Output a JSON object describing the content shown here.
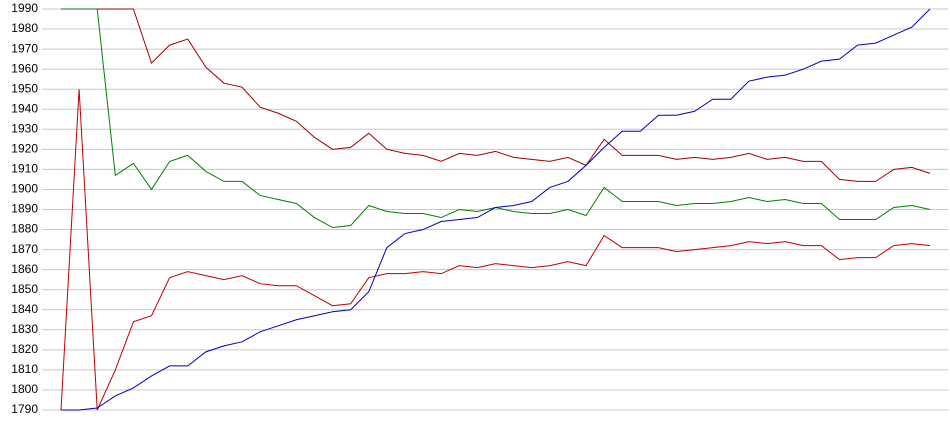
{
  "chart_data": {
    "type": "line",
    "ylim": [
      1790,
      1990
    ],
    "yticks": [
      1790,
      1800,
      1810,
      1820,
      1830,
      1840,
      1850,
      1860,
      1870,
      1880,
      1890,
      1900,
      1910,
      1920,
      1930,
      1940,
      1950,
      1960,
      1970,
      1980,
      1990
    ],
    "grid": true,
    "series": [
      {
        "color": "#a00000",
        "values": [
          1990,
          1990,
          1990,
          1990,
          1990,
          1963,
          1972,
          1975,
          1961,
          1953,
          1951,
          1941,
          1938,
          1934,
          1926,
          1920,
          1921,
          1928,
          1920,
          1918,
          1917,
          1914,
          1918,
          1917,
          1919,
          1916,
          1915,
          1914,
          1916,
          1912,
          1925,
          1917,
          1917,
          1917,
          1915,
          1916,
          1915,
          1916,
          1918,
          1915,
          1916,
          1914,
          1914,
          1905,
          1904,
          1904,
          1910,
          1911,
          1908
        ]
      },
      {
        "color": "#008000",
        "values": [
          1990,
          1990,
          1990,
          1907,
          1913,
          1900,
          1914,
          1917,
          1909,
          1904,
          1904,
          1897,
          1895,
          1893,
          1886,
          1881,
          1882,
          1892,
          1889,
          1888,
          1888,
          1886,
          1890,
          1889,
          1891,
          1889,
          1888,
          1888,
          1890,
          1887,
          1901,
          1894,
          1894,
          1894,
          1892,
          1893,
          1893,
          1894,
          1896,
          1894,
          1895,
          1893,
          1893,
          1885,
          1885,
          1885,
          1891,
          1892,
          1890
        ]
      },
      {
        "color": "#c00000",
        "values": [
          1790,
          1950,
          1790,
          1810,
          1834,
          1837,
          1856,
          1859,
          1857,
          1855,
          1857,
          1853,
          1852,
          1852,
          1847,
          1842,
          1843,
          1856,
          1858,
          1858,
          1859,
          1858,
          1862,
          1861,
          1863,
          1862,
          1861,
          1862,
          1864,
          1862,
          1877,
          1871,
          1871,
          1871,
          1869,
          1870,
          1871,
          1872,
          1874,
          1873,
          1874,
          1872,
          1872,
          1865,
          1866,
          1866,
          1872,
          1873,
          1872
        ]
      },
      {
        "color": "#0000c0",
        "values": [
          1790,
          1790,
          1791,
          1797,
          1801,
          1807,
          1812,
          1812,
          1819,
          1822,
          1824,
          1829,
          1832,
          1835,
          1837,
          1839,
          1840,
          1849,
          1871,
          1878,
          1880,
          1884,
          1885,
          1886,
          1891,
          1892,
          1894,
          1901,
          1904,
          1912,
          1921,
          1929,
          1929,
          1937,
          1937,
          1939,
          1945,
          1945,
          1954,
          1956,
          1957,
          1960,
          1964,
          1965,
          1972,
          1973,
          1977,
          1981,
          1990
        ]
      }
    ]
  }
}
